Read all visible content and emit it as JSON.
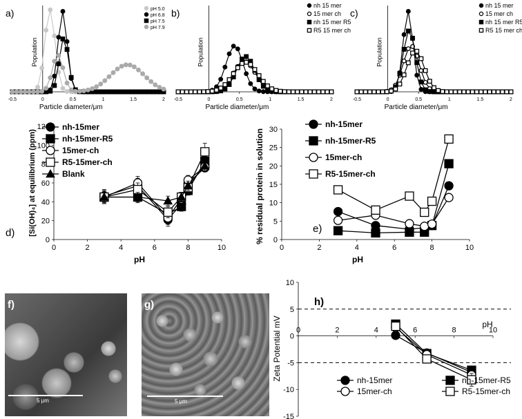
{
  "chart_data": [
    {
      "id": "a",
      "type": "line",
      "panel_label": "a)",
      "ylabel": "Population",
      "xlabel": "Particle diameter/μm",
      "xlim": [
        -0.5,
        2
      ],
      "xticks": [
        "-0.5",
        "0",
        "0.5",
        "1",
        "1.5",
        "2"
      ],
      "legend_position": "top-right",
      "series": [
        {
          "name": "pH 5.0",
          "color": "#c8c8c8",
          "marker": "circle",
          "dist": [
            [
              0.12,
              0.085,
              1.0
            ]
          ]
        },
        {
          "name": "pH 6.8",
          "color": "#000000",
          "marker": "circle",
          "dist": [
            [
              0.33,
              0.075,
              0.98
            ]
          ]
        },
        {
          "name": "pH 7.5",
          "color": "#000000",
          "marker": "square",
          "dist": [
            [
              0.35,
              0.075,
              0.66
            ]
          ]
        },
        {
          "name": "pH 7.9",
          "color": "#aaaaaa",
          "marker": "circle",
          "dist": [
            [
              0.25,
              0.09,
              0.45
            ],
            [
              1.4,
              0.28,
              0.33
            ]
          ]
        }
      ]
    },
    {
      "id": "b",
      "type": "line",
      "panel_label": "b)",
      "ylabel": "Population",
      "xlabel": "Particle diameter/μm",
      "xlim": [
        -0.5,
        2
      ],
      "xticks": [
        "-0.5",
        "0",
        "0.5",
        "1",
        "1.5",
        "2"
      ],
      "legend_position": "top-right",
      "series": [
        {
          "name": "nh 15 mer",
          "color": "#000000",
          "marker": "circle",
          "dist": [
            [
              0.42,
              0.14,
              0.56
            ]
          ]
        },
        {
          "name": "15 mer ch",
          "color": "#000000",
          "marker": "circle-open",
          "dist": [
            [
              0.58,
              0.18,
              0.37
            ]
          ]
        },
        {
          "name": "nh 15 mer R5",
          "color": "#000000",
          "marker": "square",
          "dist": [
            [
              0.6,
              0.15,
              0.43
            ]
          ]
        },
        {
          "name": "R5 15 mer ch",
          "color": "#000000",
          "marker": "square-open",
          "dist": [
            [
              0.6,
              0.2,
              0.36
            ]
          ]
        }
      ]
    },
    {
      "id": "c",
      "type": "line",
      "panel_label": "c)",
      "ylabel": "Population",
      "xlabel": "Particle diameter/μm",
      "xlim": [
        -0.5,
        2
      ],
      "xticks": [
        "-0.5",
        "0",
        "0.5",
        "1",
        "1.5",
        "2"
      ],
      "legend_position": "top-right",
      "series": [
        {
          "name": "nh 15 mer",
          "color": "#000000",
          "marker": "circle",
          "dist": [
            [
              0.33,
              0.08,
              0.98
            ]
          ]
        },
        {
          "name": "15 mer ch",
          "color": "#000000",
          "marker": "circle-open",
          "dist": [
            [
              0.38,
              0.13,
              0.56
            ]
          ]
        },
        {
          "name": "nh 15 mer R5",
          "color": "#000000",
          "marker": "square",
          "dist": [
            [
              0.35,
              0.1,
              0.75
            ]
          ]
        },
        {
          "name": "R5 15 mer ch",
          "color": "#000000",
          "marker": "square-open",
          "dist": [
            [
              0.45,
              0.14,
              0.5
            ]
          ]
        }
      ]
    },
    {
      "id": "d",
      "type": "line",
      "panel_label": "d)",
      "ylabel": "[Si(OH)₄] at equilibrium (ppm)",
      "xlabel": "pH",
      "xlim": [
        0,
        10
      ],
      "ylim": [
        0,
        120
      ],
      "xticks": [
        "0",
        "2",
        "4",
        "6",
        "8",
        "10"
      ],
      "yticks": [
        "0",
        "20",
        "40",
        "60",
        "80",
        "100",
        "120"
      ],
      "legend_position": "top-left",
      "x": [
        3,
        5,
        6.8,
        7.6,
        8,
        9
      ],
      "series": [
        {
          "name": "nh-15mer",
          "marker": "circle",
          "values": [
            46,
            57,
            21,
            38,
            60,
            76
          ],
          "errors": [
            7,
            8,
            7,
            5,
            5,
            4
          ]
        },
        {
          "name": "nh-15mer-R5",
          "marker": "square",
          "values": [
            45,
            45,
            27,
            35,
            52,
            83
          ],
          "errors": [
            6,
            6,
            5,
            5,
            5,
            5
          ]
        },
        {
          "name": "15mer-ch",
          "marker": "circle-open",
          "values": [
            45,
            60,
            23,
            43,
            63,
            77
          ],
          "errors": [
            7,
            7,
            7,
            5,
            5,
            5
          ]
        },
        {
          "name": "R5-15mer-ch",
          "marker": "square-open",
          "values": [
            45,
            53,
            29,
            45,
            55,
            93
          ],
          "errors": [
            7,
            7,
            6,
            5,
            5,
            9
          ]
        },
        {
          "name": "Blank",
          "marker": "triangle",
          "values": [
            45,
            45,
            41,
            45,
            57,
            78
          ],
          "errors": [
            5,
            5,
            5,
            5,
            5,
            5
          ]
        }
      ]
    },
    {
      "id": "e",
      "type": "line",
      "panel_label": "e)",
      "ylabel": "% residual protein in solution",
      "xlabel": "pH",
      "xlim": [
        0,
        10
      ],
      "ylim": [
        0,
        30
      ],
      "xticks": [
        "0",
        "2",
        "4",
        "6",
        "8",
        "10"
      ],
      "yticks": [
        "0",
        "5",
        "10",
        "15",
        "20",
        "25",
        "30"
      ],
      "legend_position": "top-left",
      "x": [
        3,
        5,
        6.8,
        7.6,
        8,
        8.9
      ],
      "series": [
        {
          "name": "nh-15mer",
          "marker": "circle",
          "values": [
            7.6,
            3.8,
            2.8,
            3.2,
            3.8,
            14.6
          ]
        },
        {
          "name": "nh-15mer-R5",
          "marker": "square",
          "values": [
            2.4,
            1.8,
            2.0,
            2.0,
            3.8,
            20.6
          ]
        },
        {
          "name": "15mer-ch",
          "marker": "circle-open",
          "values": [
            5.2,
            6.6,
            4.3,
            3.6,
            4.2,
            11.4
          ]
        },
        {
          "name": "R5-15mer-ch",
          "marker": "square-open",
          "values": [
            13.5,
            8.0,
            11.8,
            7.4,
            10.4,
            27.3
          ]
        }
      ]
    },
    {
      "id": "h",
      "type": "line",
      "panel_label": "h)",
      "ylabel": "Zeta Potential mV",
      "xlabel": "pH",
      "xlim": [
        0,
        10
      ],
      "ylim": [
        -15,
        10
      ],
      "xticks": [
        "0",
        "2",
        "4",
        "6",
        "8",
        "10"
      ],
      "yticks": [
        "-15",
        "-10",
        "-5",
        "0",
        "5",
        "10"
      ],
      "reference_lines": [
        5,
        -5
      ],
      "legend_position": "bottom",
      "x": [
        5,
        6.6,
        8.9
      ],
      "series": [
        {
          "name": "nh-15mer",
          "marker": "circle",
          "values": [
            0.1,
            -3.2,
            -6.8
          ],
          "errors": [
            0.5,
            0.5,
            0.6
          ]
        },
        {
          "name": "nh-15mer-R5",
          "marker": "square",
          "values": [
            2.2,
            -3.3,
            -6.4
          ],
          "errors": [
            0.5,
            0.5,
            0.6
          ]
        },
        {
          "name": "15mer-ch",
          "marker": "circle-open",
          "values": [
            1.6,
            -3.5,
            -7.3
          ],
          "errors": [
            0.5,
            0.5,
            0.6
          ]
        },
        {
          "name": "R5-15mer-ch",
          "marker": "square-open",
          "values": [
            1.8,
            -4.3,
            -8.2
          ],
          "errors": [
            0.6,
            0.6,
            1.2
          ]
        }
      ]
    }
  ],
  "micrographs": {
    "f": {
      "label": "f)",
      "scale": "5 μm"
    },
    "g": {
      "label": "g)",
      "scale": "5 μm"
    }
  }
}
